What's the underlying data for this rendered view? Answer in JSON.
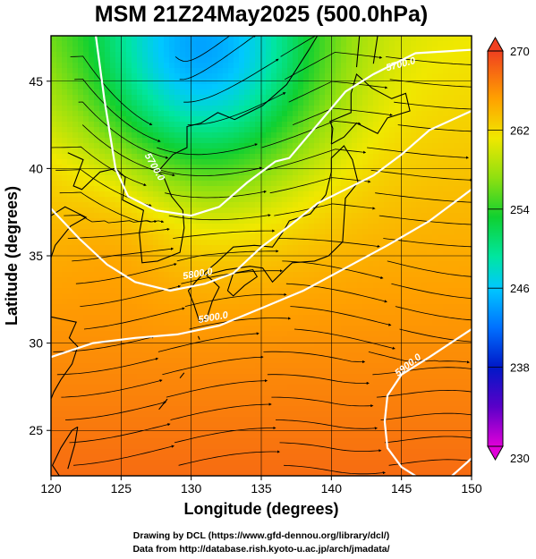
{
  "title": "MSM 21Z24May2025 (500.0hPa)",
  "chart_data": {
    "type": "heatmap",
    "title": "MSM 21Z24May2025 (500.0hPa)",
    "xlabel": "Longitude (degrees)",
    "ylabel": "Latitude  (degrees)",
    "xlim": [
      120,
      150
    ],
    "ylim": [
      22.4,
      47.6
    ],
    "x_ticks": [
      "120",
      "125",
      "130",
      "135",
      "140",
      "145",
      "150"
    ],
    "y_ticks": [
      "25",
      "30",
      "35",
      "40",
      "45"
    ],
    "grid": true,
    "colorbar": {
      "min": 230,
      "max": 270,
      "ticks": [
        "270",
        "262",
        "254",
        "246",
        "238",
        "230"
      ]
    },
    "contours": [
      {
        "label": "5700.0",
        "points": [
          [
            123.2,
            47.6
          ],
          [
            123.8,
            44
          ],
          [
            124.6,
            40
          ],
          [
            125.5,
            38.4
          ],
          [
            127.5,
            37.6
          ],
          [
            130,
            37.3
          ],
          [
            132,
            37.8
          ],
          [
            134,
            39.2
          ],
          [
            136,
            40.4
          ],
          [
            137,
            40.6
          ],
          [
            139,
            42.5
          ],
          [
            141,
            44.4
          ],
          [
            143,
            45.4
          ],
          [
            146,
            46.6
          ],
          [
            150,
            46.8
          ]
        ]
      },
      {
        "label": "5800.0",
        "points": [
          [
            120,
            37.7
          ],
          [
            122,
            36
          ],
          [
            124,
            34.5
          ],
          [
            126,
            33.5
          ],
          [
            128.5,
            33
          ],
          [
            131,
            33.4
          ],
          [
            133,
            34
          ],
          [
            135,
            35.5
          ],
          [
            137,
            36.7
          ],
          [
            139,
            38
          ],
          [
            141,
            38.8
          ],
          [
            143,
            39.6
          ],
          [
            145,
            40.8
          ],
          [
            147,
            42.2
          ],
          [
            150,
            43.3
          ]
        ]
      },
      {
        "label": "5900.0",
        "points": [
          [
            120,
            29.2
          ],
          [
            123,
            30
          ],
          [
            126,
            30.3
          ],
          [
            129,
            30.5
          ],
          [
            132,
            31
          ],
          [
            135,
            32
          ],
          [
            138,
            33
          ],
          [
            141,
            34.3
          ],
          [
            144,
            35.6
          ],
          [
            147,
            37
          ],
          [
            150,
            38.8
          ]
        ]
      },
      {
        "label": "5900.0",
        "points": [
          [
            150,
            30.8
          ],
          [
            147,
            29.2
          ],
          [
            145,
            28.2
          ],
          [
            144,
            27
          ],
          [
            143.8,
            25.5
          ],
          [
            144,
            24
          ],
          [
            145,
            22.9
          ],
          [
            146,
            22.4
          ]
        ]
      },
      {
        "label": "",
        "points": [
          [
            150,
            23.4
          ],
          [
            148.6,
            22.4
          ]
        ]
      }
    ],
    "contour_label_positions": [
      {
        "text": "5700.0",
        "lon": 145,
        "lat": 45.8,
        "rotate": -15
      },
      {
        "text": "5700.0",
        "lon": 127.2,
        "lat": 40,
        "rotate": 60
      },
      {
        "text": "5800.0",
        "lon": 130.5,
        "lat": 33.8,
        "rotate": -10
      },
      {
        "text": "5900.0",
        "lon": 131.6,
        "lat": 31.3,
        "rotate": -10
      },
      {
        "text": "5900.0",
        "lon": 145.6,
        "lat": 28.6,
        "rotate": -38
      }
    ]
  },
  "footer": {
    "line1": "Drawing by DCL (https://www.gfd-dennou.org/library/dcl/)",
    "line2": "Data from http://database.rish.kyoto-u.ac.jp/arch/jmadata/"
  }
}
